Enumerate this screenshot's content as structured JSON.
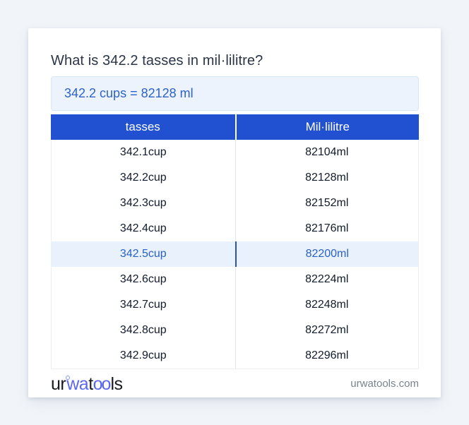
{
  "header": {
    "question": "What is 342.2 tasses in mil·lilitre?"
  },
  "answer_box": {
    "text": "342.2 cups = 82128 ml"
  },
  "table": {
    "columns": [
      "tasses",
      "Mil·lilitre"
    ],
    "rows": [
      {
        "tasses": "342.1cup",
        "millilitre": "82104ml",
        "highlighted": false
      },
      {
        "tasses": "342.2cup",
        "millilitre": "82128ml",
        "highlighted": false
      },
      {
        "tasses": "342.3cup",
        "millilitre": "82152ml",
        "highlighted": false
      },
      {
        "tasses": "342.4cup",
        "millilitre": "82176ml",
        "highlighted": false
      },
      {
        "tasses": "342.5cup",
        "millilitre": "82200ml",
        "highlighted": true
      },
      {
        "tasses": "342.6cup",
        "millilitre": "82224ml",
        "highlighted": false
      },
      {
        "tasses": "342.7cup",
        "millilitre": "82248ml",
        "highlighted": false
      },
      {
        "tasses": "342.8cup",
        "millilitre": "82272ml",
        "highlighted": false
      },
      {
        "tasses": "342.9cup",
        "millilitre": "82296ml",
        "highlighted": false
      }
    ]
  },
  "footer": {
    "logo": {
      "ur": "ur",
      "wa": "wa",
      "t": "t",
      "oo": "oo",
      "ls": "ls"
    },
    "site": "urwatools.com"
  },
  "colors": {
    "page_bg": "#f1f4f9",
    "card_bg": "#ffffff",
    "header_blue": "#2151d0",
    "answer_bg": "#ecf3fc",
    "answer_text": "#2d63c8",
    "row_text": "#111b2b",
    "highlight_bg": "#e8f1fc",
    "highlight_text": "#2a62c5",
    "highlight_divider": "#2a55ae",
    "logo_dark": "#171a1f",
    "logo_blue": "#5b67f1",
    "footer_text": "#79828f"
  }
}
